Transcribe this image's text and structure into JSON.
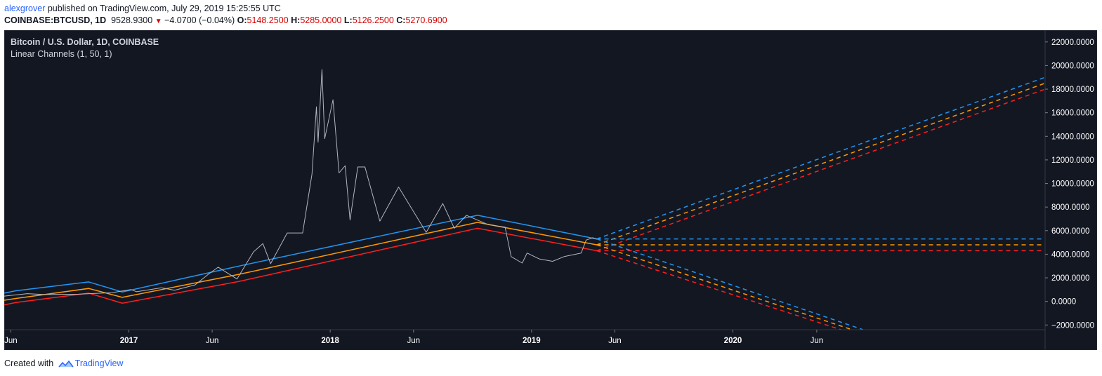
{
  "header": {
    "author": "alexgrover",
    "published": " published on TradingView.com, July 29, 2019 15:25:55 UTC",
    "symbol": "COINBASE:BTCUSD, 1D",
    "price": "9528.9300",
    "change": "−4.0700 (−0.04%)",
    "open_label": "O:",
    "open": "5148.2500",
    "high_label": "H:",
    "high": "5285.0000",
    "low_label": "L:",
    "low": "5126.2500",
    "close_label": "C:",
    "close": "5270.6900"
  },
  "legend": {
    "title": "Bitcoin / U.S. Dollar, 1D, COINBASE",
    "indicator": "Linear Channels (1, 50, 1)"
  },
  "footer": {
    "created_with": "Created with",
    "brand": "TradingView"
  },
  "colors": {
    "background": "#131722",
    "price": "#b2b5be",
    "upper": "#2196f3",
    "middle": "#ff9800",
    "lower": "#ff1f1f",
    "axis_text": "#ffffff",
    "border": "#363a45"
  },
  "icons": [
    "down-triangle-icon",
    "tradingview-logo-icon"
  ],
  "chart_data": {
    "type": "line",
    "x_axis": {
      "type": "date",
      "range": [
        "2016-05-20",
        "2021-07-20"
      ],
      "ticks": [
        {
          "date": "2016-06-01",
          "label": "Jun",
          "bold": false
        },
        {
          "date": "2017-01-01",
          "label": "2017",
          "bold": true
        },
        {
          "date": "2017-06-01",
          "label": "Jun",
          "bold": false
        },
        {
          "date": "2018-01-01",
          "label": "2018",
          "bold": true
        },
        {
          "date": "2018-06-01",
          "label": "Jun",
          "bold": false
        },
        {
          "date": "2019-01-01",
          "label": "2019",
          "bold": true
        },
        {
          "date": "2019-06-01",
          "label": "Jun",
          "bold": false
        },
        {
          "date": "2020-01-01",
          "label": "2020",
          "bold": true
        },
        {
          "date": "2020-06-01",
          "label": "Jun",
          "bold": false
        }
      ]
    },
    "y_axis": {
      "range": [
        -2400,
        23000
      ],
      "ticks": [
        {
          "value": 22000,
          "label": "22000.0000"
        },
        {
          "value": 20000,
          "label": "20000.0000"
        },
        {
          "value": 18000,
          "label": "18000.0000"
        },
        {
          "value": 16000,
          "label": "16000.0000"
        },
        {
          "value": 14000,
          "label": "14000.0000"
        },
        {
          "value": 12000,
          "label": "12000.0000"
        },
        {
          "value": 10000,
          "label": "10000.0000"
        },
        {
          "value": 8000,
          "label": "8000.0000"
        },
        {
          "value": 6000,
          "label": "6000.0000"
        },
        {
          "value": 4000,
          "label": "4000.0000"
        },
        {
          "value": 2000,
          "label": "2000.0000"
        },
        {
          "value": 0,
          "label": "0.0000"
        },
        {
          "value": -2000,
          "label": "−2000.0000"
        }
      ]
    },
    "price_series": {
      "style": "line",
      "points": [
        [
          "2016-05-20",
          450
        ],
        [
          "2016-07-01",
          660
        ],
        [
          "2016-08-01",
          580
        ],
        [
          "2016-10-01",
          610
        ],
        [
          "2016-12-01",
          740
        ],
        [
          "2017-01-05",
          1000
        ],
        [
          "2017-01-15",
          820
        ],
        [
          "2017-03-01",
          1150
        ],
        [
          "2017-03-25",
          950
        ],
        [
          "2017-05-01",
          1400
        ],
        [
          "2017-05-25",
          2300
        ],
        [
          "2017-06-12",
          2900
        ],
        [
          "2017-07-16",
          1900
        ],
        [
          "2017-08-15",
          4200
        ],
        [
          "2017-09-01",
          4900
        ],
        [
          "2017-09-15",
          3200
        ],
        [
          "2017-10-15",
          5800
        ],
        [
          "2017-11-12",
          5800
        ],
        [
          "2017-11-29",
          10800
        ],
        [
          "2017-12-07",
          16500
        ],
        [
          "2017-12-10",
          13500
        ],
        [
          "2017-12-17",
          19650
        ],
        [
          "2017-12-22",
          13800
        ],
        [
          "2018-01-06",
          17100
        ],
        [
          "2018-01-17",
          10900
        ],
        [
          "2018-01-28",
          11500
        ],
        [
          "2018-02-06",
          6900
        ],
        [
          "2018-02-20",
          11400
        ],
        [
          "2018-03-05",
          11400
        ],
        [
          "2018-04-01",
          6800
        ],
        [
          "2018-05-05",
          9700
        ],
        [
          "2018-06-24",
          5850
        ],
        [
          "2018-07-24",
          8300
        ],
        [
          "2018-08-14",
          6200
        ],
        [
          "2018-09-05",
          7300
        ],
        [
          "2018-10-15",
          6500
        ],
        [
          "2018-11-14",
          6300
        ],
        [
          "2018-11-25",
          3800
        ],
        [
          "2018-12-15",
          3250
        ],
        [
          "2018-12-24",
          4100
        ],
        [
          "2019-01-15",
          3600
        ],
        [
          "2019-02-08",
          3400
        ],
        [
          "2019-03-01",
          3800
        ],
        [
          "2019-04-01",
          4100
        ],
        [
          "2019-04-10",
          5200
        ],
        [
          "2019-04-22",
          5400
        ],
        [
          "2019-04-29",
          5270
        ]
      ]
    },
    "series": [
      {
        "name": "",
        "role": "upper",
        "style": "solid",
        "points": [
          [
            "2016-05-20",
            700
          ],
          [
            "2016-06-10",
            900
          ],
          [
            "2016-10-20",
            1650
          ],
          [
            "2016-12-20",
            800
          ],
          [
            "2017-07-20",
            3000
          ],
          [
            "2018-09-25",
            7300
          ],
          [
            "2019-04-29",
            5300
          ]
        ]
      },
      {
        "name": "",
        "role": "middle",
        "style": "solid",
        "points": [
          [
            "2016-05-20",
            100
          ],
          [
            "2016-06-10",
            250
          ],
          [
            "2016-10-20",
            1100
          ],
          [
            "2016-12-20",
            350
          ],
          [
            "2017-07-20",
            2300
          ],
          [
            "2018-09-25",
            6700
          ],
          [
            "2019-04-29",
            4800
          ]
        ]
      },
      {
        "name": "",
        "role": "lower",
        "style": "solid",
        "points": [
          [
            "2016-05-20",
            -300
          ],
          [
            "2016-06-10",
            -100
          ],
          [
            "2016-10-20",
            700
          ],
          [
            "2016-12-20",
            -150
          ],
          [
            "2017-07-20",
            1700
          ],
          [
            "2018-09-25",
            6200
          ],
          [
            "2019-04-29",
            4300
          ]
        ]
      },
      {
        "name": "",
        "role": "upper",
        "style": "dashed",
        "points": [
          [
            "2019-04-29",
            5300
          ],
          [
            "2021-07-20",
            19000
          ]
        ]
      },
      {
        "name": "",
        "role": "middle",
        "style": "dashed",
        "points": [
          [
            "2019-04-29",
            4800
          ],
          [
            "2021-07-20",
            18500
          ]
        ]
      },
      {
        "name": "",
        "role": "lower",
        "style": "dashed",
        "points": [
          [
            "2019-04-29",
            4300
          ],
          [
            "2021-07-20",
            18000
          ]
        ]
      },
      {
        "name": "",
        "role": "upper",
        "style": "dashed",
        "points": [
          [
            "2019-04-29",
            5300
          ],
          [
            "2021-07-20",
            5300
          ]
        ]
      },
      {
        "name": "",
        "role": "middle",
        "style": "dashed",
        "points": [
          [
            "2019-04-29",
            4800
          ],
          [
            "2021-07-20",
            4800
          ]
        ]
      },
      {
        "name": "",
        "role": "lower",
        "style": "dashed",
        "points": [
          [
            "2019-04-29",
            4300
          ],
          [
            "2021-07-20",
            4300
          ]
        ]
      },
      {
        "name": "",
        "role": "upper",
        "style": "dashed",
        "points": [
          [
            "2019-04-29",
            5300
          ],
          [
            "2020-08-24",
            -2400
          ]
        ]
      },
      {
        "name": "",
        "role": "middle",
        "style": "dashed",
        "points": [
          [
            "2019-04-29",
            4800
          ],
          [
            "2020-08-04",
            -2400
          ]
        ]
      },
      {
        "name": "",
        "role": "lower",
        "style": "dashed",
        "points": [
          [
            "2019-04-29",
            4300
          ],
          [
            "2020-07-15",
            -2400
          ]
        ]
      }
    ],
    "grid": false,
    "legend_position": "top-left"
  }
}
